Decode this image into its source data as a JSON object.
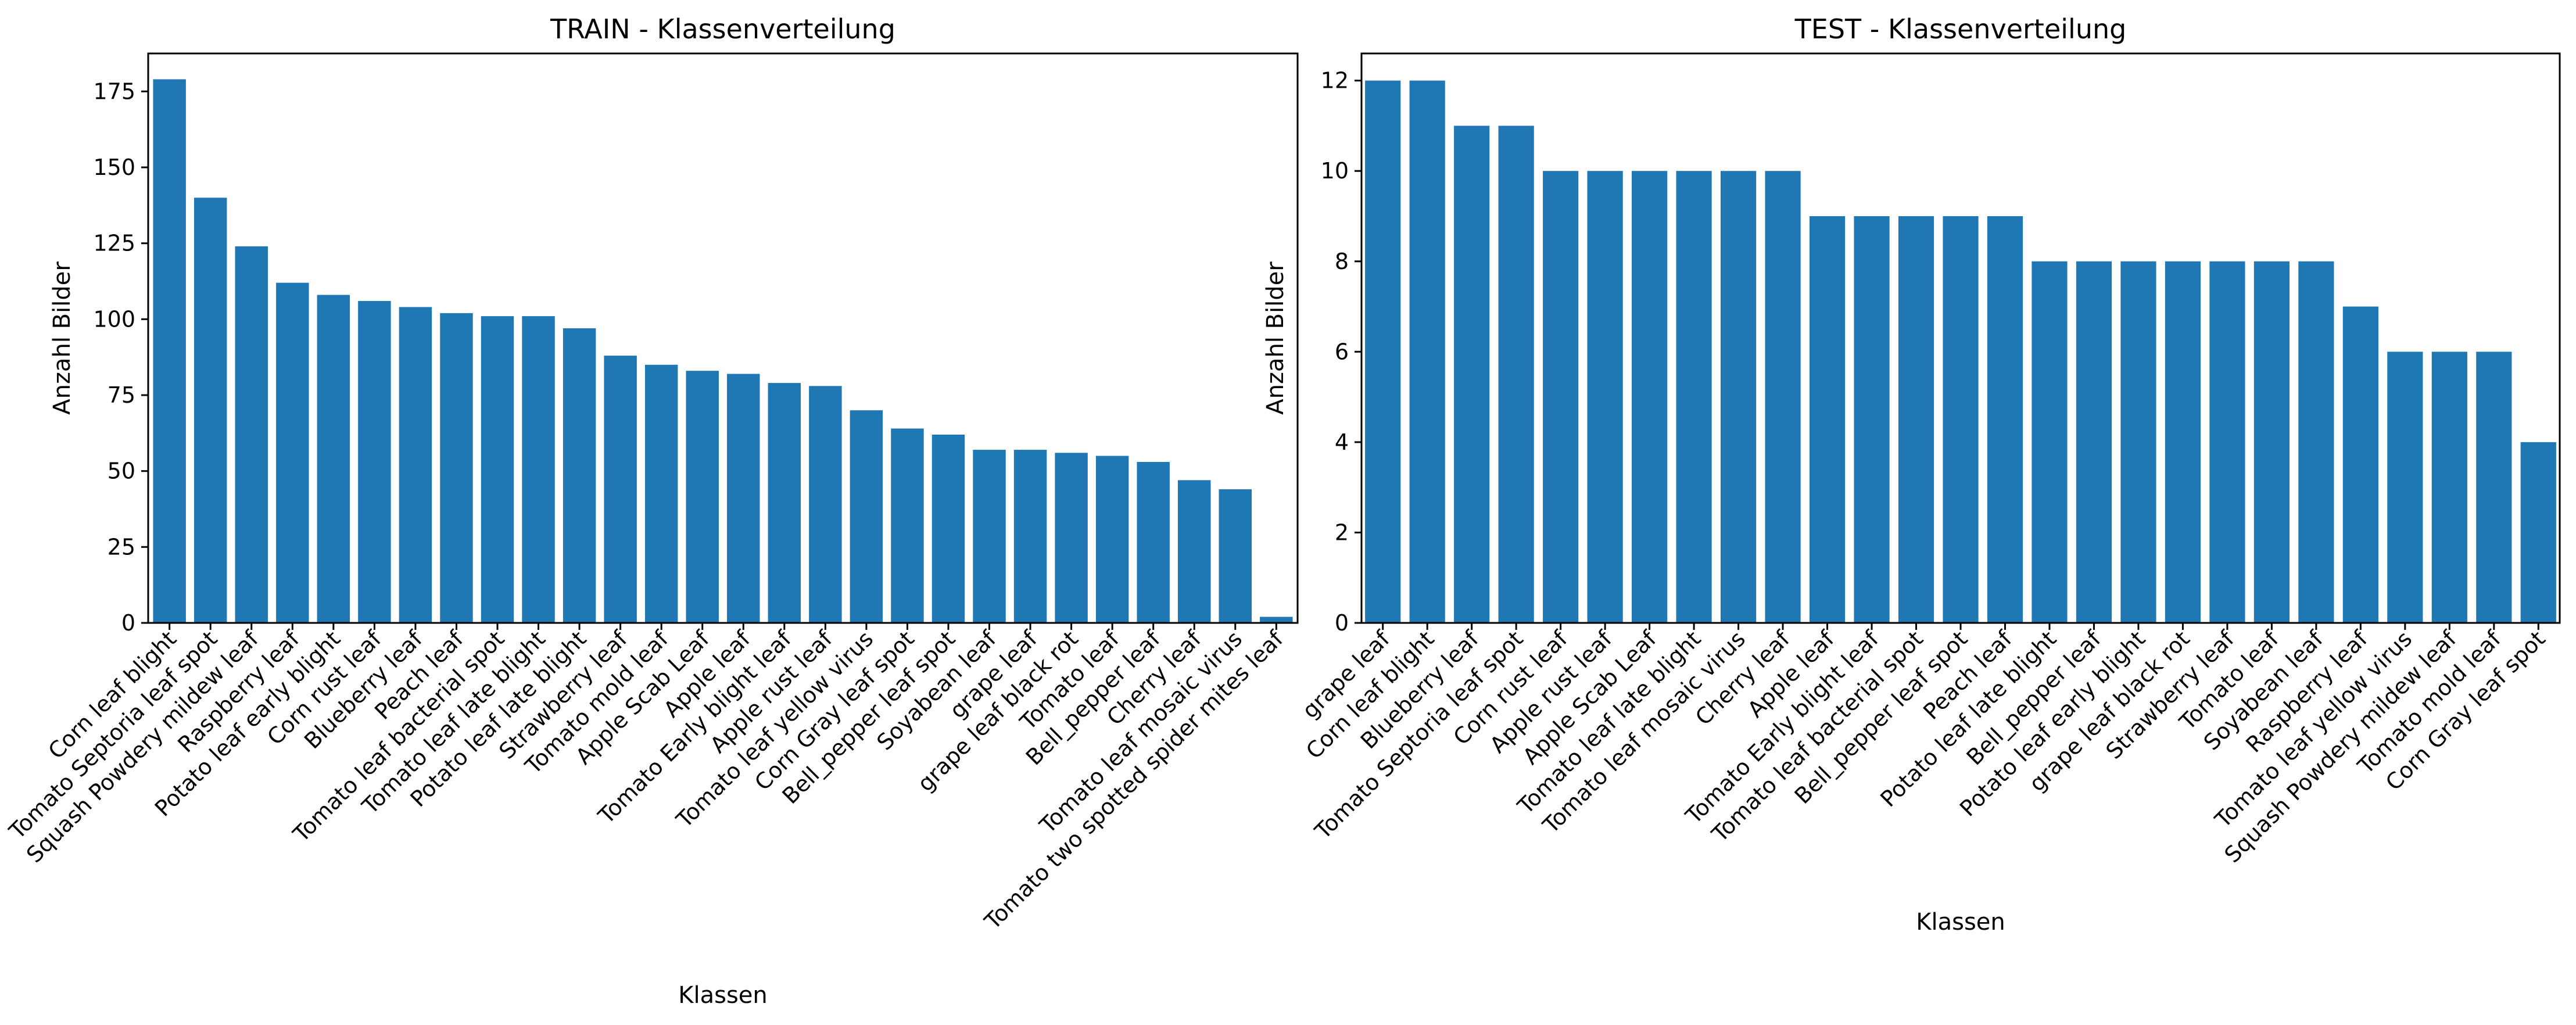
{
  "chart_data": [
    {
      "type": "bar",
      "title": "TRAIN - Klassenverteilung",
      "xlabel": "Klassen",
      "ylabel": "Anzahl Bilder",
      "ylim": [
        0,
        187.5
      ],
      "yticks": [
        0,
        25,
        50,
        75,
        100,
        125,
        150,
        175
      ],
      "bar_color": "#1f77b4",
      "grid": false,
      "legend": "none",
      "categories": [
        "Corn leaf blight",
        "Tomato Septoria leaf spot",
        "Squash Powdery mildew leaf",
        "Raspberry leaf",
        "Potato leaf early blight",
        "Corn rust leaf",
        "Blueberry leaf",
        "Peach leaf",
        "Tomato leaf bacterial spot",
        "Tomato leaf late blight",
        "Potato leaf late blight",
        "Strawberry leaf",
        "Tomato mold leaf",
        "Apple Scab Leaf",
        "Apple leaf",
        "Tomato Early blight leaf",
        "Apple rust leaf",
        "Tomato leaf yellow virus",
        "Corn Gray leaf spot",
        "Bell_pepper leaf spot",
        "Soyabean leaf",
        "grape leaf",
        "grape leaf black rot",
        "Tomato leaf",
        "Bell_pepper leaf",
        "Cherry leaf",
        "Tomato leaf mosaic virus",
        "Tomato two spotted spider mites leaf"
      ],
      "values": [
        179,
        140,
        124,
        112,
        108,
        106,
        104,
        102,
        101,
        101,
        97,
        88,
        85,
        83,
        82,
        79,
        78,
        70,
        64,
        62,
        57,
        57,
        56,
        55,
        53,
        47,
        44,
        2
      ]
    },
    {
      "type": "bar",
      "title": "TEST - Klassenverteilung",
      "xlabel": "Klassen",
      "ylabel": "Anzahl Bilder",
      "ylim": [
        0,
        12.6
      ],
      "yticks": [
        0,
        2,
        4,
        6,
        8,
        10,
        12
      ],
      "bar_color": "#1f77b4",
      "grid": false,
      "legend": "none",
      "categories": [
        "grape leaf",
        "Corn leaf blight",
        "Blueberry leaf",
        "Tomato Septoria leaf spot",
        "Corn rust leaf",
        "Apple rust leaf",
        "Apple Scab Leaf",
        "Tomato leaf late blight",
        "Tomato leaf mosaic virus",
        "Cherry leaf",
        "Apple leaf",
        "Tomato Early blight leaf",
        "Tomato leaf bacterial spot",
        "Bell_pepper leaf spot",
        "Peach leaf",
        "Potato leaf late blight",
        "Bell_pepper leaf",
        "Potato leaf early blight",
        "grape leaf black rot",
        "Strawberry leaf",
        "Tomato leaf",
        "Soyabean leaf",
        "Raspberry leaf",
        "Tomato leaf yellow virus",
        "Squash Powdery mildew leaf",
        "Tomato mold leaf",
        "Corn Gray leaf spot"
      ],
      "values": [
        12,
        12,
        11,
        11,
        10,
        10,
        10,
        10,
        10,
        10,
        9,
        9,
        9,
        9,
        9,
        8,
        8,
        8,
        8,
        8,
        8,
        8,
        7,
        6,
        6,
        6,
        4
      ]
    }
  ]
}
